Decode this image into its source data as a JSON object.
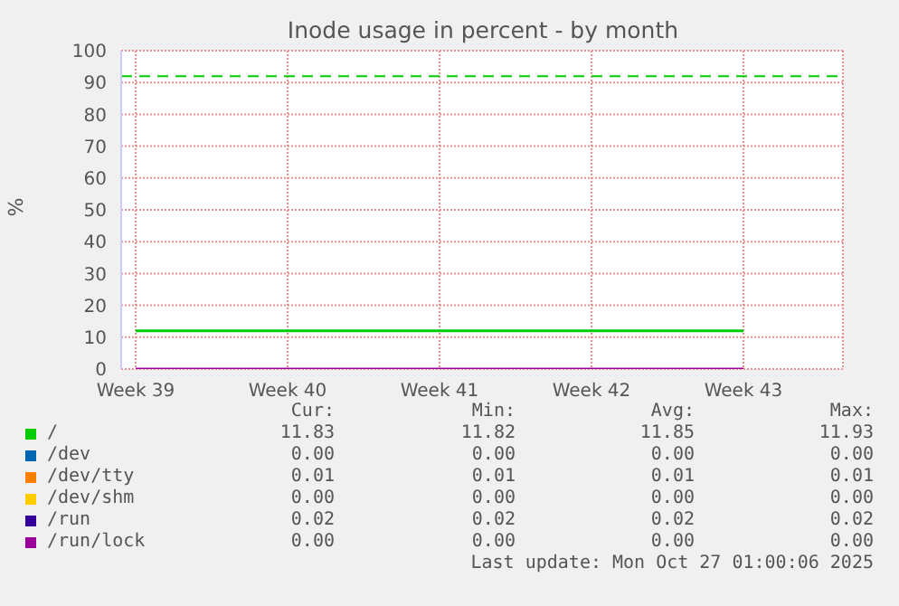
{
  "chart_data": {
    "type": "line",
    "title": "Inode usage in percent - by month",
    "ylabel": "%",
    "categories": [
      "Week 39",
      "Week 40",
      "Week 41",
      "Week 42",
      "Week 43"
    ],
    "ylim": [
      0,
      100
    ],
    "yticks": [
      0,
      10,
      20,
      30,
      40,
      50,
      60,
      70,
      80,
      90,
      100
    ],
    "series": [
      {
        "name": "/",
        "color": "#00cc00",
        "values": [
          12,
          12,
          12,
          12,
          12
        ]
      },
      {
        "name": "/dev",
        "color": "#0066b3",
        "values": [
          null,
          null,
          null,
          null,
          null
        ]
      },
      {
        "name": "/dev/tty",
        "color": "#ff8000",
        "values": [
          null,
          null,
          null,
          null,
          null
        ]
      },
      {
        "name": "/dev/shm",
        "color": "#ffcc00",
        "values": [
          null,
          null,
          null,
          null,
          null
        ]
      },
      {
        "name": "/run",
        "color": "#330099",
        "values": [
          null,
          null,
          null,
          null,
          null
        ]
      },
      {
        "name": "/run/lock",
        "color": "#990099",
        "values": [
          0,
          0,
          0,
          0,
          0
        ]
      }
    ],
    "ref_lines": [
      {
        "axis": "y",
        "value": 92,
        "color": "#00cc00",
        "line_style": "dashed"
      }
    ],
    "grid": true,
    "legend": "bottom",
    "marker": "none",
    "line_style": "solid",
    "annotations": [
      "Cur:",
      "Min:",
      "Avg:",
      "Max:",
      "11.83",
      "11.82",
      "11.85",
      "11.93",
      "0.00",
      "0.00",
      "0.00",
      "0.00",
      "0.01",
      "0.01",
      "0.01",
      "0.01",
      "0.00",
      "0.00",
      "0.00",
      "0.00",
      "0.02",
      "0.02",
      "0.02",
      "0.02",
      "0.00",
      "0.00",
      "0.00",
      "0.00",
      "Last update: Mon Oct 27 01:00:06 2025"
    ]
  }
}
